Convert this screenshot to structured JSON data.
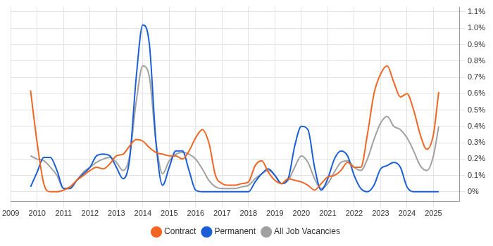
{
  "chart_data": {
    "type": "line",
    "x": [
      2009.75,
      2010,
      2010.25,
      2010.5,
      2010.75,
      2011,
      2011.25,
      2011.5,
      2011.75,
      2012,
      2012.25,
      2012.5,
      2012.75,
      2013,
      2013.25,
      2013.5,
      2013.75,
      2014,
      2014.25,
      2014.5,
      2014.75,
      2015,
      2015.25,
      2015.5,
      2015.75,
      2016,
      2016.25,
      2016.5,
      2016.75,
      2017,
      2017.25,
      2017.5,
      2017.75,
      2018,
      2018.25,
      2018.5,
      2018.75,
      2019,
      2019.25,
      2019.5,
      2019.75,
      2020,
      2020.25,
      2020.5,
      2020.75,
      2021,
      2021.25,
      2021.5,
      2021.75,
      2022,
      2022.25,
      2022.5,
      2022.75,
      2023,
      2023.25,
      2023.5,
      2023.75,
      2024,
      2024.25,
      2024.5,
      2024.75,
      2025,
      2025.2
    ],
    "series": [
      {
        "name": "Contract",
        "color": "#f26522",
        "values": [
          0.62,
          0.3,
          0.05,
          0.0,
          0.0,
          0.01,
          0.03,
          0.07,
          0.1,
          0.13,
          0.15,
          0.14,
          0.17,
          0.22,
          0.23,
          0.28,
          0.32,
          0.31,
          0.27,
          0.24,
          0.23,
          0.22,
          0.22,
          0.2,
          0.25,
          0.33,
          0.38,
          0.3,
          0.1,
          0.05,
          0.04,
          0.04,
          0.05,
          0.06,
          0.16,
          0.19,
          0.12,
          0.07,
          0.05,
          0.08,
          0.07,
          0.06,
          0.04,
          0.01,
          0.05,
          0.09,
          0.1,
          0.13,
          0.18,
          0.15,
          0.15,
          0.35,
          0.6,
          0.72,
          0.77,
          0.67,
          0.58,
          0.6,
          0.5,
          0.35,
          0.26,
          0.35,
          0.61
        ]
      },
      {
        "name": "Permanent",
        "color": "#1a5fd6",
        "values": [
          0.03,
          0.12,
          0.21,
          0.21,
          0.13,
          0.02,
          0.02,
          0.07,
          0.11,
          0.15,
          0.22,
          0.23,
          0.22,
          0.15,
          0.08,
          0.2,
          0.7,
          1.02,
          0.9,
          0.3,
          0.04,
          0.15,
          0.25,
          0.25,
          0.13,
          0.01,
          0.0,
          0.0,
          0.0,
          0.0,
          0.0,
          0.0,
          0.0,
          0.0,
          0.06,
          0.11,
          0.14,
          0.1,
          0.05,
          0.08,
          0.28,
          0.4,
          0.38,
          0.15,
          0.01,
          0.08,
          0.2,
          0.25,
          0.22,
          0.1,
          0.02,
          0.0,
          0.04,
          0.14,
          0.16,
          0.18,
          0.15,
          0.03,
          0.0,
          0.0,
          0.0,
          0.0,
          0.0
        ]
      },
      {
        "name": "All Job Vacancies",
        "color": "#a0a0a0",
        "values": [
          0.22,
          0.2,
          0.19,
          0.15,
          0.1,
          0.02,
          0.03,
          0.07,
          0.12,
          0.15,
          0.18,
          0.2,
          0.21,
          0.18,
          0.13,
          0.22,
          0.55,
          0.77,
          0.7,
          0.3,
          0.11,
          0.19,
          0.23,
          0.24,
          0.23,
          0.2,
          0.14,
          0.07,
          0.03,
          0.02,
          0.02,
          0.02,
          0.03,
          0.04,
          0.08,
          0.11,
          0.13,
          0.1,
          0.05,
          0.07,
          0.15,
          0.22,
          0.18,
          0.08,
          0.02,
          0.05,
          0.12,
          0.18,
          0.19,
          0.15,
          0.13,
          0.2,
          0.32,
          0.42,
          0.46,
          0.4,
          0.38,
          0.33,
          0.25,
          0.16,
          0.13,
          0.22,
          0.4
        ]
      }
    ],
    "xlim": [
      2009,
      2026
    ],
    "xticks": [
      2009,
      2010,
      2011,
      2012,
      2013,
      2014,
      2015,
      2016,
      2017,
      2018,
      2019,
      2020,
      2021,
      2022,
      2023,
      2024,
      2025
    ],
    "ylim": [
      -0.06,
      1.13
    ],
    "yticks": [
      {
        "value": 0,
        "label": "0%"
      },
      {
        "value": 0.1,
        "label": "0.1%"
      },
      {
        "value": 0.2,
        "label": "0.2%"
      },
      {
        "value": 0.3,
        "label": "0.3%"
      },
      {
        "value": 0.4,
        "label": "0.4%"
      },
      {
        "value": 0.5,
        "label": "0.5%"
      },
      {
        "value": 0.6,
        "label": "0.6%"
      },
      {
        "value": 0.7,
        "label": "0.7%"
      },
      {
        "value": 0.8,
        "label": "0.8%"
      },
      {
        "value": 0.9,
        "label": "0.9%"
      },
      {
        "value": 1.0,
        "label": "1.0%"
      },
      {
        "value": 1.1,
        "label": "1.1%"
      }
    ],
    "grid": true,
    "legend": "bottom"
  }
}
